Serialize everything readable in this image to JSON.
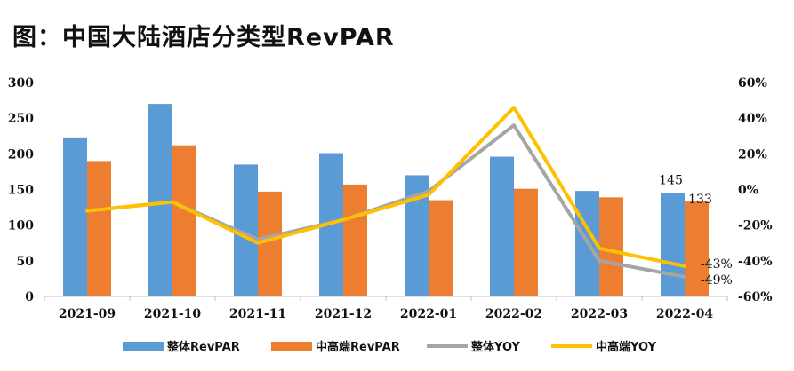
{
  "title": "图：中国大陆酒店分类型RevPAR",
  "chart_data": {
    "type": "bar",
    "categories": [
      "2021-09",
      "2021-10",
      "2021-11",
      "2021-12",
      "2022-01",
      "2022-02",
      "2022-03",
      "2022-04"
    ],
    "series": [
      {
        "name": "整体RevPAR",
        "kind": "bar",
        "axis": "left",
        "color": "#5B9BD5",
        "values": [
          223,
          270,
          185,
          201,
          170,
          196,
          148,
          145
        ]
      },
      {
        "name": "中高端RevPAR",
        "kind": "bar",
        "axis": "left",
        "color": "#ED7D31",
        "values": [
          190,
          212,
          147,
          157,
          135,
          151,
          139,
          133
        ]
      },
      {
        "name": "整体YOY",
        "kind": "line",
        "axis": "right",
        "color": "#A5A5A5",
        "values": [
          -12,
          -7,
          -28,
          -17,
          -1,
          36,
          -40,
          -49
        ]
      },
      {
        "name": "中高端YOY",
        "kind": "line",
        "axis": "right",
        "color": "#FFC000",
        "values": [
          -12,
          -7,
          -30,
          -17,
          -3,
          46,
          -33,
          -43
        ]
      }
    ],
    "y_left": {
      "min": 0,
      "max": 300,
      "ticks": [
        "0",
        "50",
        "100",
        "150",
        "200",
        "250",
        "300"
      ]
    },
    "y_right": {
      "min": -60,
      "max": 60,
      "ticks": [
        "-60%",
        "-40%",
        "-20%",
        "0%",
        "20%",
        "40%",
        "60%"
      ]
    },
    "data_labels": [
      {
        "text": "145",
        "series": 0,
        "index": 7
      },
      {
        "text": "133",
        "series": 1,
        "index": 7
      },
      {
        "text": "-43%",
        "series": 3,
        "index": 7
      },
      {
        "text": "-49%",
        "series": 2,
        "index": 7
      }
    ],
    "legend": {
      "placement": "bottom"
    },
    "grid": false
  }
}
